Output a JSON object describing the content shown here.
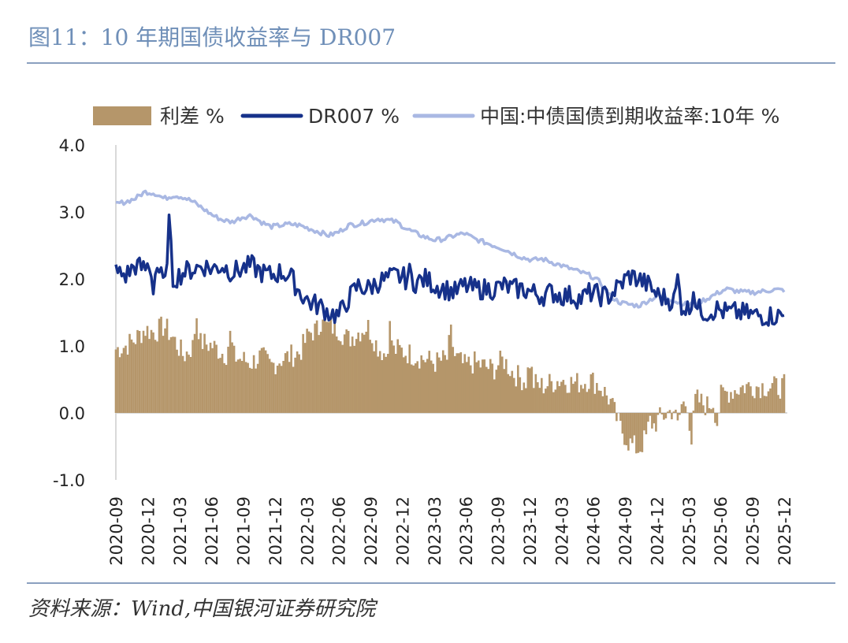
{
  "header": {
    "title": "图11：10 年期国债收益率与 DR007"
  },
  "footer": {
    "source": "资料来源：Wind,中国银河证券研究院"
  },
  "chart_data": {
    "type": "area+line",
    "title": "图11：10 年期国债收益率与 DR007",
    "ylim": [
      -1.0,
      4.0
    ],
    "yticks": [
      "4.0",
      "3.0",
      "2.0",
      "1.0",
      "0.0",
      "-1.0"
    ],
    "xticks": [
      "2020-09",
      "2020-12",
      "2021-03",
      "2021-06",
      "2021-09",
      "2021-12",
      "2022-03",
      "2022-06",
      "2022-09",
      "2022-12",
      "2023-03",
      "2023-06",
      "2023-09",
      "2023-12",
      "2024-03",
      "2024-06",
      "2024-09",
      "2024-12",
      "2025-03",
      "2025-06",
      "2025-09",
      "2025-12"
    ],
    "series": [
      {
        "name": "利差 %",
        "type": "area",
        "color": "#b5966a",
        "values": [
          0.95,
          1.0,
          1.1,
          1.25,
          1.2,
          1.3,
          1.1,
          0.85,
          1.0,
          1.05,
          1.0,
          0.9,
          0.85,
          0.8,
          0.75,
          0.85,
          0.7,
          0.8,
          0.85,
          0.9,
          1.2,
          1.25,
          1.3,
          1.25,
          1.1,
          1.2,
          1.3,
          1.0,
          0.85,
          0.95,
          0.9,
          0.85,
          0.8,
          0.75,
          0.8,
          0.85,
          0.7,
          0.75,
          0.7,
          0.65,
          0.8,
          0.6,
          0.5,
          0.45,
          0.4,
          0.45,
          0.5,
          0.45,
          0.45,
          0.5,
          0.4,
          0.2,
          -0.2,
          -0.45,
          -0.55,
          -0.3,
          -0.1,
          0.0,
          0.1,
          0.15,
          0.2,
          0.1,
          0.2,
          0.3,
          0.35,
          0.4,
          0.4,
          0.4,
          0.38,
          0.4
        ],
        "spikes": [
          [
            0.12,
            0.45
          ],
          [
            0.17,
            0.3
          ],
          [
            0.31,
            0.25
          ],
          [
            0.41,
            0.4
          ],
          [
            0.5,
            0.35
          ],
          [
            0.62,
            0.3
          ],
          [
            0.8,
            0.15
          ],
          [
            0.84,
            -0.3
          ],
          [
            0.86,
            -0.6
          ],
          [
            0.9,
            -0.35
          ]
        ]
      },
      {
        "name": "DR007 %",
        "type": "line",
        "color": "#16318a",
        "values": [
          2.1,
          2.05,
          2.2,
          2.15,
          2.3,
          1.9,
          2.0,
          2.1,
          2.15,
          2.2,
          2.15,
          2.2,
          2.1,
          2.15,
          2.2,
          2.1,
          2.05,
          2.1,
          2.05,
          1.8,
          1.65,
          1.6,
          1.5,
          1.45,
          1.7,
          1.9,
          1.85,
          1.95,
          2.0,
          2.05,
          2.0,
          1.95,
          2.0,
          1.9,
          1.85,
          1.8,
          1.9,
          1.85,
          1.85,
          1.85,
          1.9,
          1.85,
          1.85,
          1.8,
          1.75,
          1.8,
          1.75,
          1.75,
          1.7,
          1.8,
          1.75,
          1.75,
          1.9,
          2.05,
          2.0,
          1.9,
          1.75,
          1.7,
          1.65,
          1.55,
          1.55,
          1.5,
          1.55,
          1.5,
          1.5,
          1.48,
          1.46,
          1.45,
          1.45,
          1.45
        ],
        "spikes": [
          [
            0.08,
            0.9
          ],
          [
            0.055,
            -0.4
          ],
          [
            0.44,
            0.6
          ],
          [
            0.44,
            -0.5
          ],
          [
            0.84,
            0.35
          ],
          [
            0.865,
            0.3
          ]
        ]
      },
      {
        "name": "中国:中债国债到期收益率:10年 %",
        "type": "line",
        "color": "#a9b8e3",
        "values": [
          3.12,
          3.15,
          3.2,
          3.3,
          3.28,
          3.2,
          3.25,
          3.22,
          3.15,
          3.05,
          2.95,
          2.88,
          2.85,
          2.92,
          2.95,
          2.85,
          2.78,
          2.8,
          2.82,
          2.8,
          2.75,
          2.7,
          2.65,
          2.7,
          2.8,
          2.82,
          2.85,
          2.9,
          2.88,
          2.85,
          2.75,
          2.68,
          2.62,
          2.58,
          2.6,
          2.65,
          2.68,
          2.6,
          2.55,
          2.5,
          2.45,
          2.38,
          2.32,
          2.28,
          2.3,
          2.25,
          2.2,
          2.15,
          2.1,
          2.05,
          1.95,
          1.75,
          1.65,
          1.62,
          1.6,
          1.68,
          1.75,
          1.72,
          1.65,
          1.62,
          1.65,
          1.7,
          1.78,
          1.85,
          1.82,
          1.8,
          1.8,
          1.82,
          1.84,
          1.83
        ]
      }
    ],
    "legend": [
      "利差 %",
      "DR007 %",
      "中国:中债国债到期收益率:10年 %"
    ],
    "legend_position": "top"
  }
}
